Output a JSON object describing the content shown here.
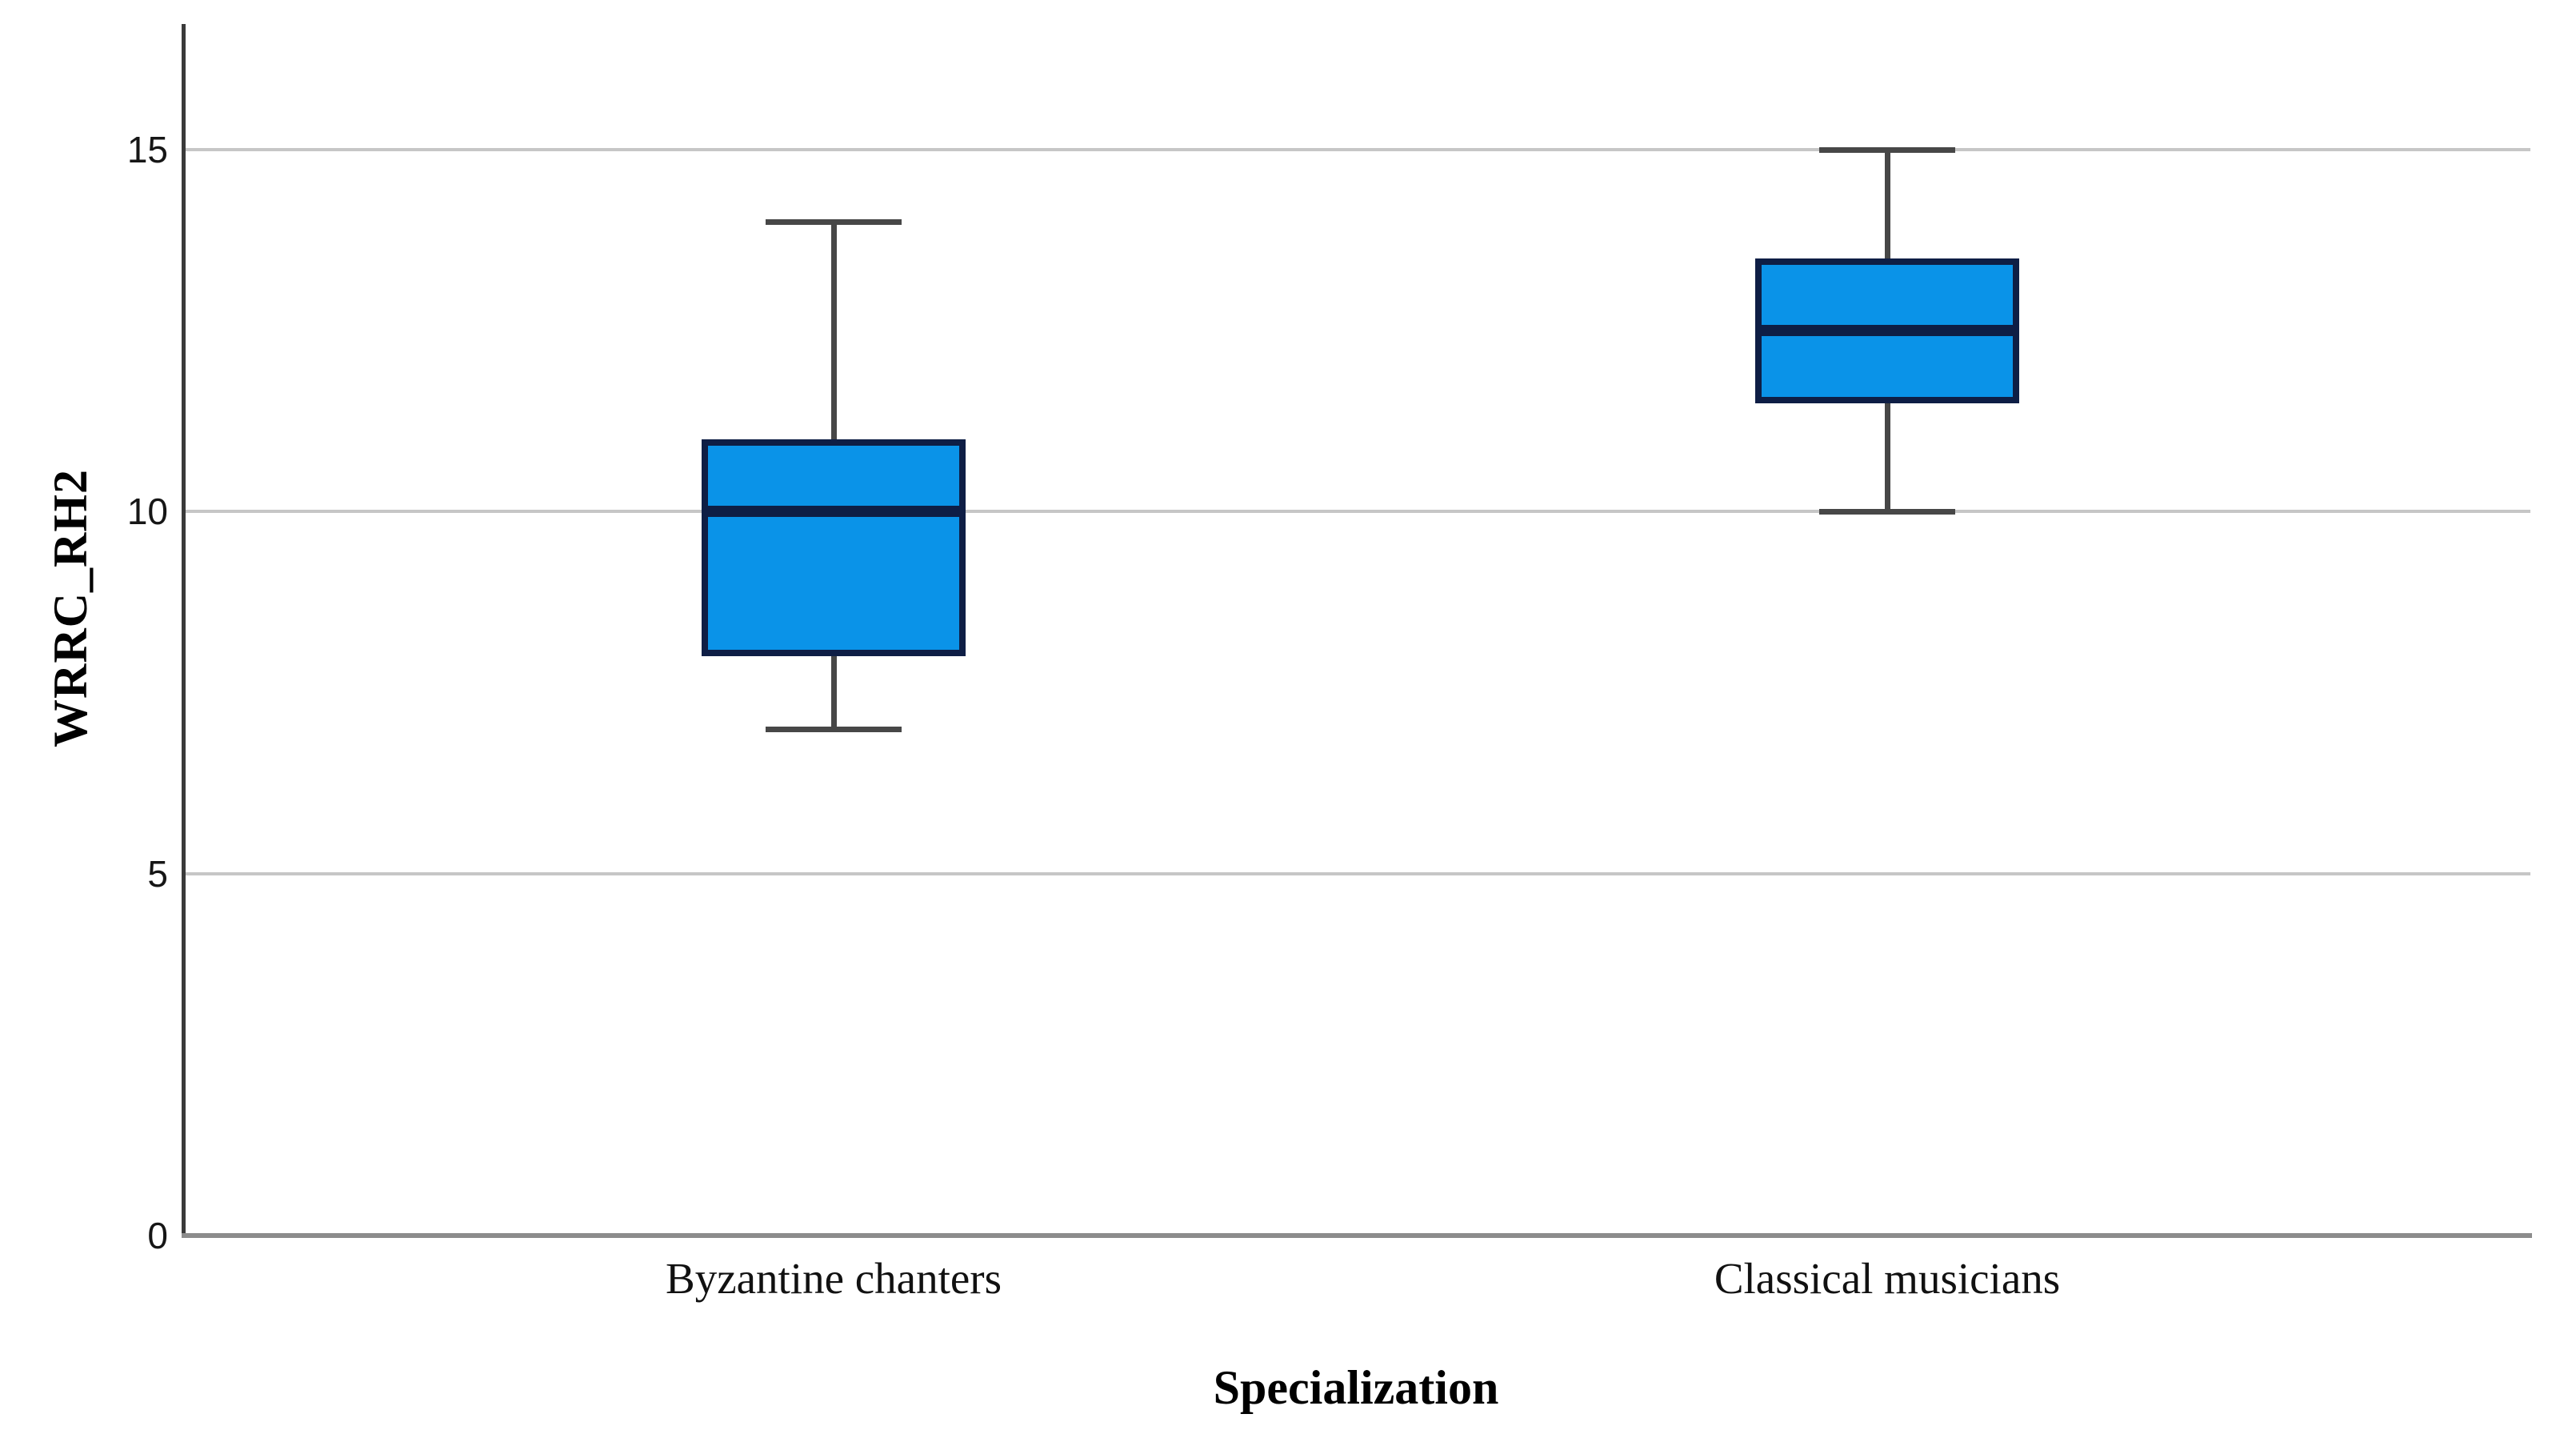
{
  "chart_data": {
    "type": "boxplot",
    "title": "",
    "xlabel": "Specialization",
    "ylabel": "WRRC_RH2",
    "ylim": [
      0,
      16.7
    ],
    "yticks": [
      0,
      5,
      10,
      15
    ],
    "grid": "horizontal gridlines at y ticks 5, 10, 15; no vertical gridlines",
    "legend": "none",
    "categories": [
      "Byzantine chanters",
      "Classical musicians"
    ],
    "series": [
      {
        "name": "Byzantine chanters",
        "min": 7,
        "q1": 8,
        "median": 10,
        "q3": 11,
        "max": 14
      },
      {
        "name": "Classical musicians",
        "min": 10,
        "q1": 11.5,
        "median": 12.5,
        "q3": 13.5,
        "max": 15
      }
    ],
    "colors": {
      "box_fill": "#0a93e8",
      "box_border": "#0e1e45",
      "median": "#0e1e45",
      "whisker": "#474747",
      "gridline": "#c6c6c6",
      "y_axis_line": "#3a3a3a",
      "x_axis_line": "#8c8c8c",
      "tick_text": "#161616",
      "label_text": "#000000"
    }
  }
}
